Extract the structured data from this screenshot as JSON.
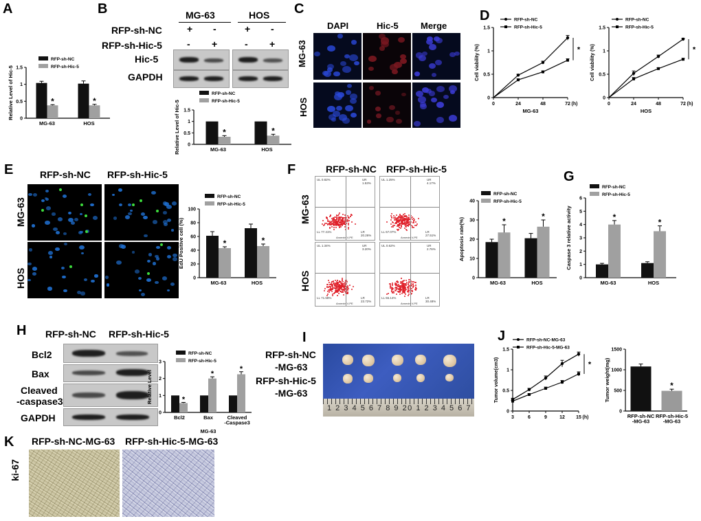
{
  "panels": {
    "A": "A",
    "B": "B",
    "C": "C",
    "D": "D",
    "E": "E",
    "F": "F",
    "G": "G",
    "H": "H",
    "I": "I",
    "J": "J",
    "K": "K"
  },
  "groups": {
    "nc": "RFP-sh-NC",
    "hic": "RFP-sh-Hic-5"
  },
  "cells": {
    "mg63": "MG-63",
    "hos": "HOS"
  },
  "symbols": {
    "plus": "+",
    "minus": "-",
    "star": "*"
  },
  "blot_labels": {
    "hic5": "Hic-5",
    "gapdh": "GAPDH",
    "bcl2": "Bcl2",
    "bax": "Bax",
    "cleaved1": "Cleaved",
    "cleaved2": "-caspase3"
  },
  "stain": {
    "dapi": "DAPI",
    "hic5": "Hic-5",
    "merge": "Merge",
    "ki67": "ki-67"
  },
  "tumor_labels": {
    "nc1": "RFP-sh-NC",
    "nc2": "-MG-63",
    "hic1": "RFP-sh-Hic-5",
    "hic2": "-MG-63"
  },
  "ihc_labels": {
    "nc": "RFP-sh-NC-MG-63",
    "hic": "RFP-sh-Hic-5-MG-63"
  },
  "ruler": {
    "numbers": "1 2 3 4 5 6 7 8 9 20 1 2 3 4 5 6 7"
  },
  "flow_quadrants": {
    "ul": "UL",
    "ur": "UR",
    "ll": "LL",
    "lr": "LR",
    "xaxis": "Annexin V-PE",
    "yaxis": "7-AAD"
  },
  "flow_values": {
    "mg63_nc": {
      "ul": "0.82%",
      "ur": "1.53%",
      "ll": "77.41%",
      "lr": "20.26%"
    },
    "mg63_hic": {
      "ul": "1.25%",
      "ur": "4.17%",
      "ll": "67.07%",
      "lr": "27.51%"
    },
    "hos_nc": {
      "ul": "1.34%",
      "ur": "3.20%",
      "ll": "71.58%",
      "lr": "23.72%"
    },
    "hos_hic": {
      "ul": "0.62%",
      "ur": "2.76%",
      "ll": "66.14%",
      "lr": "30.48%"
    }
  },
  "chart_data": [
    {
      "id": "A",
      "type": "bar",
      "categories": [
        "MG-63",
        "HOS"
      ],
      "ylabel": "Relative Level of Hic-5",
      "ylim": [
        0,
        1.5
      ],
      "yticks": [
        0,
        0.5,
        1.0,
        1.5
      ],
      "series": [
        {
          "name": "RFP-sh-NC",
          "values": [
            1.04,
            1.02
          ],
          "errors": [
            0.05,
            0.08
          ]
        },
        {
          "name": "RFP-sh-Hic-5",
          "values": [
            0.38,
            0.38
          ],
          "errors": [
            0.02,
            0.03
          ]
        }
      ],
      "significance": [
        "*",
        "*"
      ]
    },
    {
      "id": "B",
      "type": "bar",
      "categories": [
        "MG-63",
        "HOS"
      ],
      "ylabel": "Relative Level of Hic-5",
      "ylim": [
        0,
        1.5
      ],
      "yticks": [
        0,
        0.5,
        1.0,
        1.5
      ],
      "series": [
        {
          "name": "RFP-sh-NC",
          "values": [
            1.0,
            1.0
          ],
          "errors": [
            0,
            0
          ]
        },
        {
          "name": "RFP-sh-Hic-5",
          "values": [
            0.33,
            0.38
          ],
          "errors": [
            0.05,
            0.06
          ]
        }
      ],
      "significance": [
        "*",
        "*"
      ]
    },
    {
      "id": "D1",
      "type": "line",
      "xlabel": "MG-63",
      "ylabel": "Cell viability (%)",
      "x": [
        0,
        24,
        48,
        72
      ],
      "xticks": [
        0,
        24,
        48,
        72
      ],
      "xunit": "(h)",
      "ylim": [
        0,
        1.5
      ],
      "yticks": [
        0,
        0.5,
        1.0,
        1.5
      ],
      "series": [
        {
          "name": "RFP-sh-NC",
          "x": [
            24,
            48,
            72
          ],
          "values": [
            0.48,
            0.75,
            1.28
          ],
          "errors": [
            0.02,
            0.03,
            0.05
          ]
        },
        {
          "name": "RFP-sh-Hic-5",
          "x": [
            24,
            48,
            72
          ],
          "values": [
            0.38,
            0.55,
            0.8
          ],
          "errors": [
            0.02,
            0.02,
            0.03
          ]
        }
      ],
      "significance": "*"
    },
    {
      "id": "D2",
      "type": "line",
      "xlabel": "HOS",
      "ylabel": "Cell viability (%)",
      "x": [
        0,
        24,
        48,
        72
      ],
      "xticks": [
        0,
        24,
        48,
        72
      ],
      "xunit": "(h)",
      "ylim": [
        0,
        1.5
      ],
      "yticks": [
        0,
        0.5,
        1.0,
        1.5
      ],
      "series": [
        {
          "name": "RFP-sh-NC",
          "x": [
            24,
            48,
            72
          ],
          "values": [
            0.52,
            0.88,
            1.25
          ],
          "errors": [
            0.05,
            0.03,
            0.02
          ]
        },
        {
          "name": "RFP-sh-Hic-5",
          "x": [
            24,
            48,
            72
          ],
          "values": [
            0.4,
            0.62,
            0.82
          ],
          "errors": [
            0.03,
            0.02,
            0.02
          ]
        }
      ],
      "significance": "*"
    },
    {
      "id": "E",
      "type": "bar",
      "categories": [
        "MG-63",
        "HOS"
      ],
      "ylabel": "EdU Positive cell  (%)",
      "ylim": [
        0,
        100
      ],
      "yticks": [
        0,
        20,
        40,
        60,
        80,
        100
      ],
      "series": [
        {
          "name": "RFP-sh-NC",
          "values": [
            61,
            72
          ],
          "errors": [
            6,
            6
          ]
        },
        {
          "name": "RFP-sh-Hic-5",
          "values": [
            43,
            46
          ],
          "errors": [
            2,
            3
          ]
        }
      ],
      "significance": [
        "*",
        "*"
      ]
    },
    {
      "id": "F",
      "type": "bar",
      "categories": [
        "MG-63",
        "HOS"
      ],
      "ylabel": "Apoptosis rate(%)",
      "ylim": [
        0,
        40
      ],
      "yticks": [
        0,
        10,
        20,
        30,
        40
      ],
      "series": [
        {
          "name": "RFP-sh-NC",
          "values": [
            18.5,
            20.5
          ],
          "errors": [
            1.5,
            2.5
          ]
        },
        {
          "name": "RFP-sh-Hic-5",
          "values": [
            23.5,
            26.5
          ],
          "errors": [
            4,
            3.5
          ]
        }
      ],
      "significance": [
        "*",
        "*"
      ]
    },
    {
      "id": "G",
      "type": "bar",
      "categories": [
        "MG-63",
        "HOS"
      ],
      "ylabel": "Caspase 3 relative activity",
      "ylim": [
        0,
        6
      ],
      "yticks": [
        0,
        1,
        2,
        3,
        4,
        5,
        6
      ],
      "series": [
        {
          "name": "RFP-sh-NC",
          "values": [
            1.0,
            1.1
          ],
          "errors": [
            0.08,
            0.1
          ]
        },
        {
          "name": "RFP-sh-Hic-5",
          "values": [
            4.0,
            3.5
          ],
          "errors": [
            0.3,
            0.4
          ]
        }
      ],
      "significance": [
        "*",
        "*"
      ]
    },
    {
      "id": "H",
      "type": "bar",
      "categories": [
        "Bcl2",
        "Bax",
        "Cleaved\n-Caspase3"
      ],
      "xlabel": "MG-63",
      "ylabel": "Relative Level",
      "ylim": [
        0,
        3
      ],
      "yticks": [
        0,
        1,
        2,
        3
      ],
      "series": [
        {
          "name": "RFP-sh-NC",
          "values": [
            1.0,
            1.0,
            1.0
          ],
          "errors": [
            0,
            0,
            0
          ]
        },
        {
          "name": "RFP-sh-Hic-5",
          "values": [
            0.55,
            2.0,
            2.25
          ],
          "errors": [
            0.04,
            0.1,
            0.15
          ]
        }
      ],
      "significance": [
        "*",
        "*",
        "*"
      ]
    },
    {
      "id": "J1",
      "type": "line",
      "ylabel": "Tumor volume(cm3)",
      "x": [
        3,
        6,
        9,
        12,
        15
      ],
      "xticks": [
        3,
        6,
        9,
        12,
        15
      ],
      "xunit": "(h)",
      "ylim": [
        0,
        1.5
      ],
      "yticks": [
        0,
        0.5,
        1.0,
        1.5
      ],
      "series": [
        {
          "name": "RFP-sh-NC-MG-63",
          "x": [
            3,
            6,
            9,
            12,
            15
          ],
          "values": [
            0.28,
            0.52,
            0.8,
            1.15,
            1.38
          ],
          "errors": [
            0.03,
            0.03,
            0.05,
            0.08,
            0.05
          ]
        },
        {
          "name": "RFP-sh-Hic-5-MG-63",
          "x": [
            3,
            6,
            9,
            12,
            15
          ],
          "values": [
            0.24,
            0.4,
            0.55,
            0.7,
            0.9
          ],
          "errors": [
            0.02,
            0.02,
            0.03,
            0.04,
            0.05
          ]
        }
      ],
      "significance": "*"
    },
    {
      "id": "J2",
      "type": "bar",
      "categories": [
        "RFP-sh-NC\n-MG-63",
        "RFP-sh-Hic-5\n-MG-63"
      ],
      "ylabel": "Tumor weight(mg)",
      "ylim": [
        0,
        1500
      ],
      "yticks": [
        0,
        500,
        1000,
        1500
      ],
      "series": [
        {
          "name": "",
          "values": [
            1080,
            490
          ],
          "errors": [
            60,
            40
          ]
        }
      ],
      "colors": [
        "#111111",
        "#9a9a9a"
      ],
      "significance": [
        "",
        "*"
      ]
    }
  ],
  "colors": {
    "nc": "#111111",
    "hic": "#a0a0a0",
    "flow_red": "#e0202a",
    "blot_bg": "#cfcfcf",
    "micro_bg": "#050a1e",
    "dapi_blue": "#2a48d8"
  }
}
